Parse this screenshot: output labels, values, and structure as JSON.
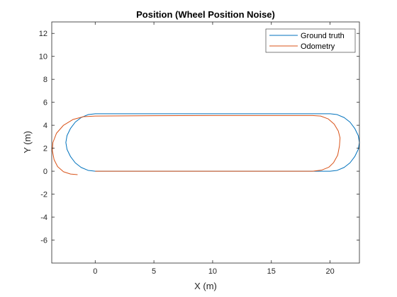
{
  "chart_data": {
    "type": "line",
    "title": "Position (Wheel Position Noise)",
    "xlabel": "X (m)",
    "ylabel": "Y (m)",
    "xlim": [
      -3.7,
      22.5
    ],
    "ylim": [
      -8,
      13
    ],
    "xticks": [
      0,
      5,
      10,
      15,
      20
    ],
    "yticks": [
      -6,
      -4,
      -2,
      0,
      2,
      4,
      6,
      8,
      10,
      12
    ],
    "grid": false,
    "legend_position": "top-right",
    "series": [
      {
        "name": "Ground truth",
        "color": "#0072BD",
        "points": [
          [
            0,
            0
          ],
          [
            5,
            0
          ],
          [
            10,
            0
          ],
          [
            15,
            0
          ],
          [
            20,
            0
          ],
          [
            20.6,
            0.07
          ],
          [
            21.2,
            0.33
          ],
          [
            21.7,
            0.73
          ],
          [
            22.1,
            1.27
          ],
          [
            22.4,
            1.9
          ],
          [
            22.5,
            2.5
          ],
          [
            22.4,
            3.1
          ],
          [
            22.1,
            3.73
          ],
          [
            21.7,
            4.27
          ],
          [
            21.2,
            4.67
          ],
          [
            20.6,
            4.93
          ],
          [
            20,
            5
          ],
          [
            15,
            5
          ],
          [
            10,
            5
          ],
          [
            5,
            5
          ],
          [
            0,
            5
          ],
          [
            -0.6,
            4.93
          ],
          [
            -1.2,
            4.67
          ],
          [
            -1.7,
            4.27
          ],
          [
            -2.1,
            3.73
          ],
          [
            -2.4,
            3.1
          ],
          [
            -2.5,
            2.5
          ],
          [
            -2.4,
            1.9
          ],
          [
            -2.1,
            1.27
          ],
          [
            -1.7,
            0.73
          ],
          [
            -1.2,
            0.33
          ],
          [
            -0.6,
            0.07
          ],
          [
            0,
            0
          ]
        ]
      },
      {
        "name": "Odometry",
        "color": "#D95319",
        "points": [
          [
            0,
            0
          ],
          [
            5,
            0
          ],
          [
            10,
            0
          ],
          [
            15,
            0
          ],
          [
            18.5,
            0
          ],
          [
            19.3,
            0.1
          ],
          [
            19.9,
            0.35
          ],
          [
            20.3,
            0.75
          ],
          [
            20.65,
            1.4
          ],
          [
            20.8,
            2.2
          ],
          [
            20.85,
            2.9
          ],
          [
            20.7,
            3.5
          ],
          [
            20.35,
            4.1
          ],
          [
            19.85,
            4.55
          ],
          [
            19.2,
            4.8
          ],
          [
            18.5,
            4.85
          ],
          [
            15,
            4.85
          ],
          [
            10,
            4.85
          ],
          [
            5,
            4.83
          ],
          [
            0,
            4.8
          ],
          [
            -1.0,
            4.75
          ],
          [
            -1.9,
            4.5
          ],
          [
            -2.7,
            4.0
          ],
          [
            -3.3,
            3.3
          ],
          [
            -3.6,
            2.5
          ],
          [
            -3.65,
            1.8
          ],
          [
            -3.5,
            1.0
          ],
          [
            -3.2,
            0.4
          ],
          [
            -2.7,
            -0.05
          ],
          [
            -2.1,
            -0.25
          ],
          [
            -1.5,
            -0.3
          ]
        ]
      }
    ]
  }
}
